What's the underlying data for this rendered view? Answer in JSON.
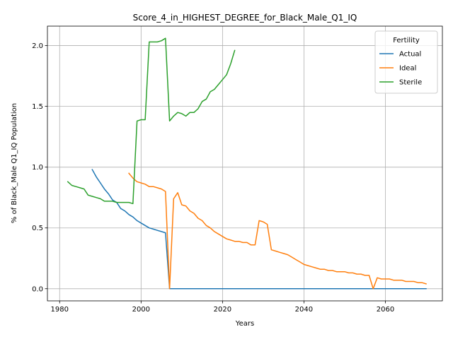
{
  "chart_data": {
    "type": "line",
    "title": "Score_4_in_HIGHEST_DEGREE_for_Black_Male_Q1_IQ",
    "xlabel": "Years",
    "ylabel": "% of Black_Male Q1_IQ Population",
    "xlim": [
      1977,
      2074
    ],
    "ylim": [
      -0.1,
      2.16
    ],
    "xticks": [
      1980,
      2000,
      2020,
      2040,
      2060
    ],
    "xtick_labels": [
      "1980",
      "2000",
      "2020",
      "2040",
      "2060"
    ],
    "yticks": [
      0.0,
      0.5,
      1.0,
      1.5,
      2.0
    ],
    "ytick_labels": [
      "0.0",
      "0.5",
      "1.0",
      "1.5",
      "2.0"
    ],
    "grid": true,
    "legend": {
      "title": "Fertility",
      "placement": "top-right"
    },
    "series": [
      {
        "name": "Actual",
        "color": "#1f77b4",
        "x": [
          1988,
          1989,
          1990,
          1991,
          1992,
          1993,
          1994,
          1995,
          1996,
          1997,
          1998,
          1999,
          2000,
          2001,
          2002,
          2003,
          2004,
          2005,
          2006,
          2007,
          2008,
          2070
        ],
        "y": [
          0.98,
          0.92,
          0.87,
          0.82,
          0.78,
          0.73,
          0.71,
          0.66,
          0.64,
          0.61,
          0.59,
          0.56,
          0.54,
          0.52,
          0.5,
          0.49,
          0.48,
          0.47,
          0.46,
          0.0,
          0.0,
          0.0
        ]
      },
      {
        "name": "Ideal",
        "color": "#ff7f0e",
        "x": [
          1997,
          1998,
          1999,
          2000,
          2001,
          2002,
          2003,
          2004,
          2005,
          2006,
          2007,
          2008,
          2009,
          2010,
          2011,
          2012,
          2013,
          2014,
          2015,
          2016,
          2017,
          2018,
          2019,
          2020,
          2021,
          2022,
          2023,
          2024,
          2025,
          2026,
          2027,
          2028,
          2029,
          2030,
          2031,
          2032,
          2033,
          2034,
          2035,
          2036,
          2037,
          2038,
          2039,
          2040,
          2041,
          2042,
          2043,
          2044,
          2045,
          2046,
          2047,
          2048,
          2049,
          2050,
          2051,
          2052,
          2053,
          2054,
          2055,
          2056,
          2057,
          2058,
          2059,
          2060,
          2061,
          2062,
          2063,
          2064,
          2065,
          2066,
          2067,
          2068,
          2069,
          2070
        ],
        "y": [
          0.95,
          0.91,
          0.88,
          0.87,
          0.86,
          0.84,
          0.84,
          0.83,
          0.82,
          0.8,
          0.0,
          0.74,
          0.79,
          0.69,
          0.68,
          0.64,
          0.62,
          0.58,
          0.56,
          0.52,
          0.5,
          0.47,
          0.45,
          0.43,
          0.41,
          0.4,
          0.39,
          0.39,
          0.38,
          0.38,
          0.36,
          0.36,
          0.56,
          0.55,
          0.53,
          0.32,
          0.31,
          0.3,
          0.29,
          0.28,
          0.26,
          0.24,
          0.22,
          0.2,
          0.19,
          0.18,
          0.17,
          0.16,
          0.16,
          0.15,
          0.15,
          0.14,
          0.14,
          0.14,
          0.13,
          0.13,
          0.12,
          0.12,
          0.11,
          0.11,
          0.0,
          0.09,
          0.08,
          0.08,
          0.08,
          0.07,
          0.07,
          0.07,
          0.06,
          0.06,
          0.06,
          0.05,
          0.05,
          0.04
        ]
      },
      {
        "name": "Sterile",
        "color": "#2ca02c",
        "x": [
          1982,
          1983,
          1984,
          1985,
          1986,
          1987,
          1988,
          1989,
          1990,
          1991,
          1992,
          1993,
          1994,
          1995,
          1996,
          1997,
          1998,
          1999,
          2000,
          2001,
          2002,
          2003,
          2004,
          2005,
          2006,
          2007,
          2008,
          2009,
          2010,
          2011,
          2012,
          2013,
          2014,
          2015,
          2016,
          2017,
          2018,
          2019,
          2020,
          2021,
          2022,
          2023
        ],
        "y": [
          0.88,
          0.85,
          0.84,
          0.83,
          0.82,
          0.77,
          0.76,
          0.75,
          0.74,
          0.72,
          0.72,
          0.72,
          0.71,
          0.71,
          0.71,
          0.71,
          0.7,
          1.38,
          1.39,
          1.39,
          2.03,
          2.03,
          2.03,
          2.04,
          2.06,
          1.38,
          1.42,
          1.45,
          1.44,
          1.42,
          1.45,
          1.45,
          1.48,
          1.54,
          1.56,
          1.62,
          1.64,
          1.68,
          1.72,
          1.76,
          1.85,
          1.96
        ]
      }
    ]
  }
}
